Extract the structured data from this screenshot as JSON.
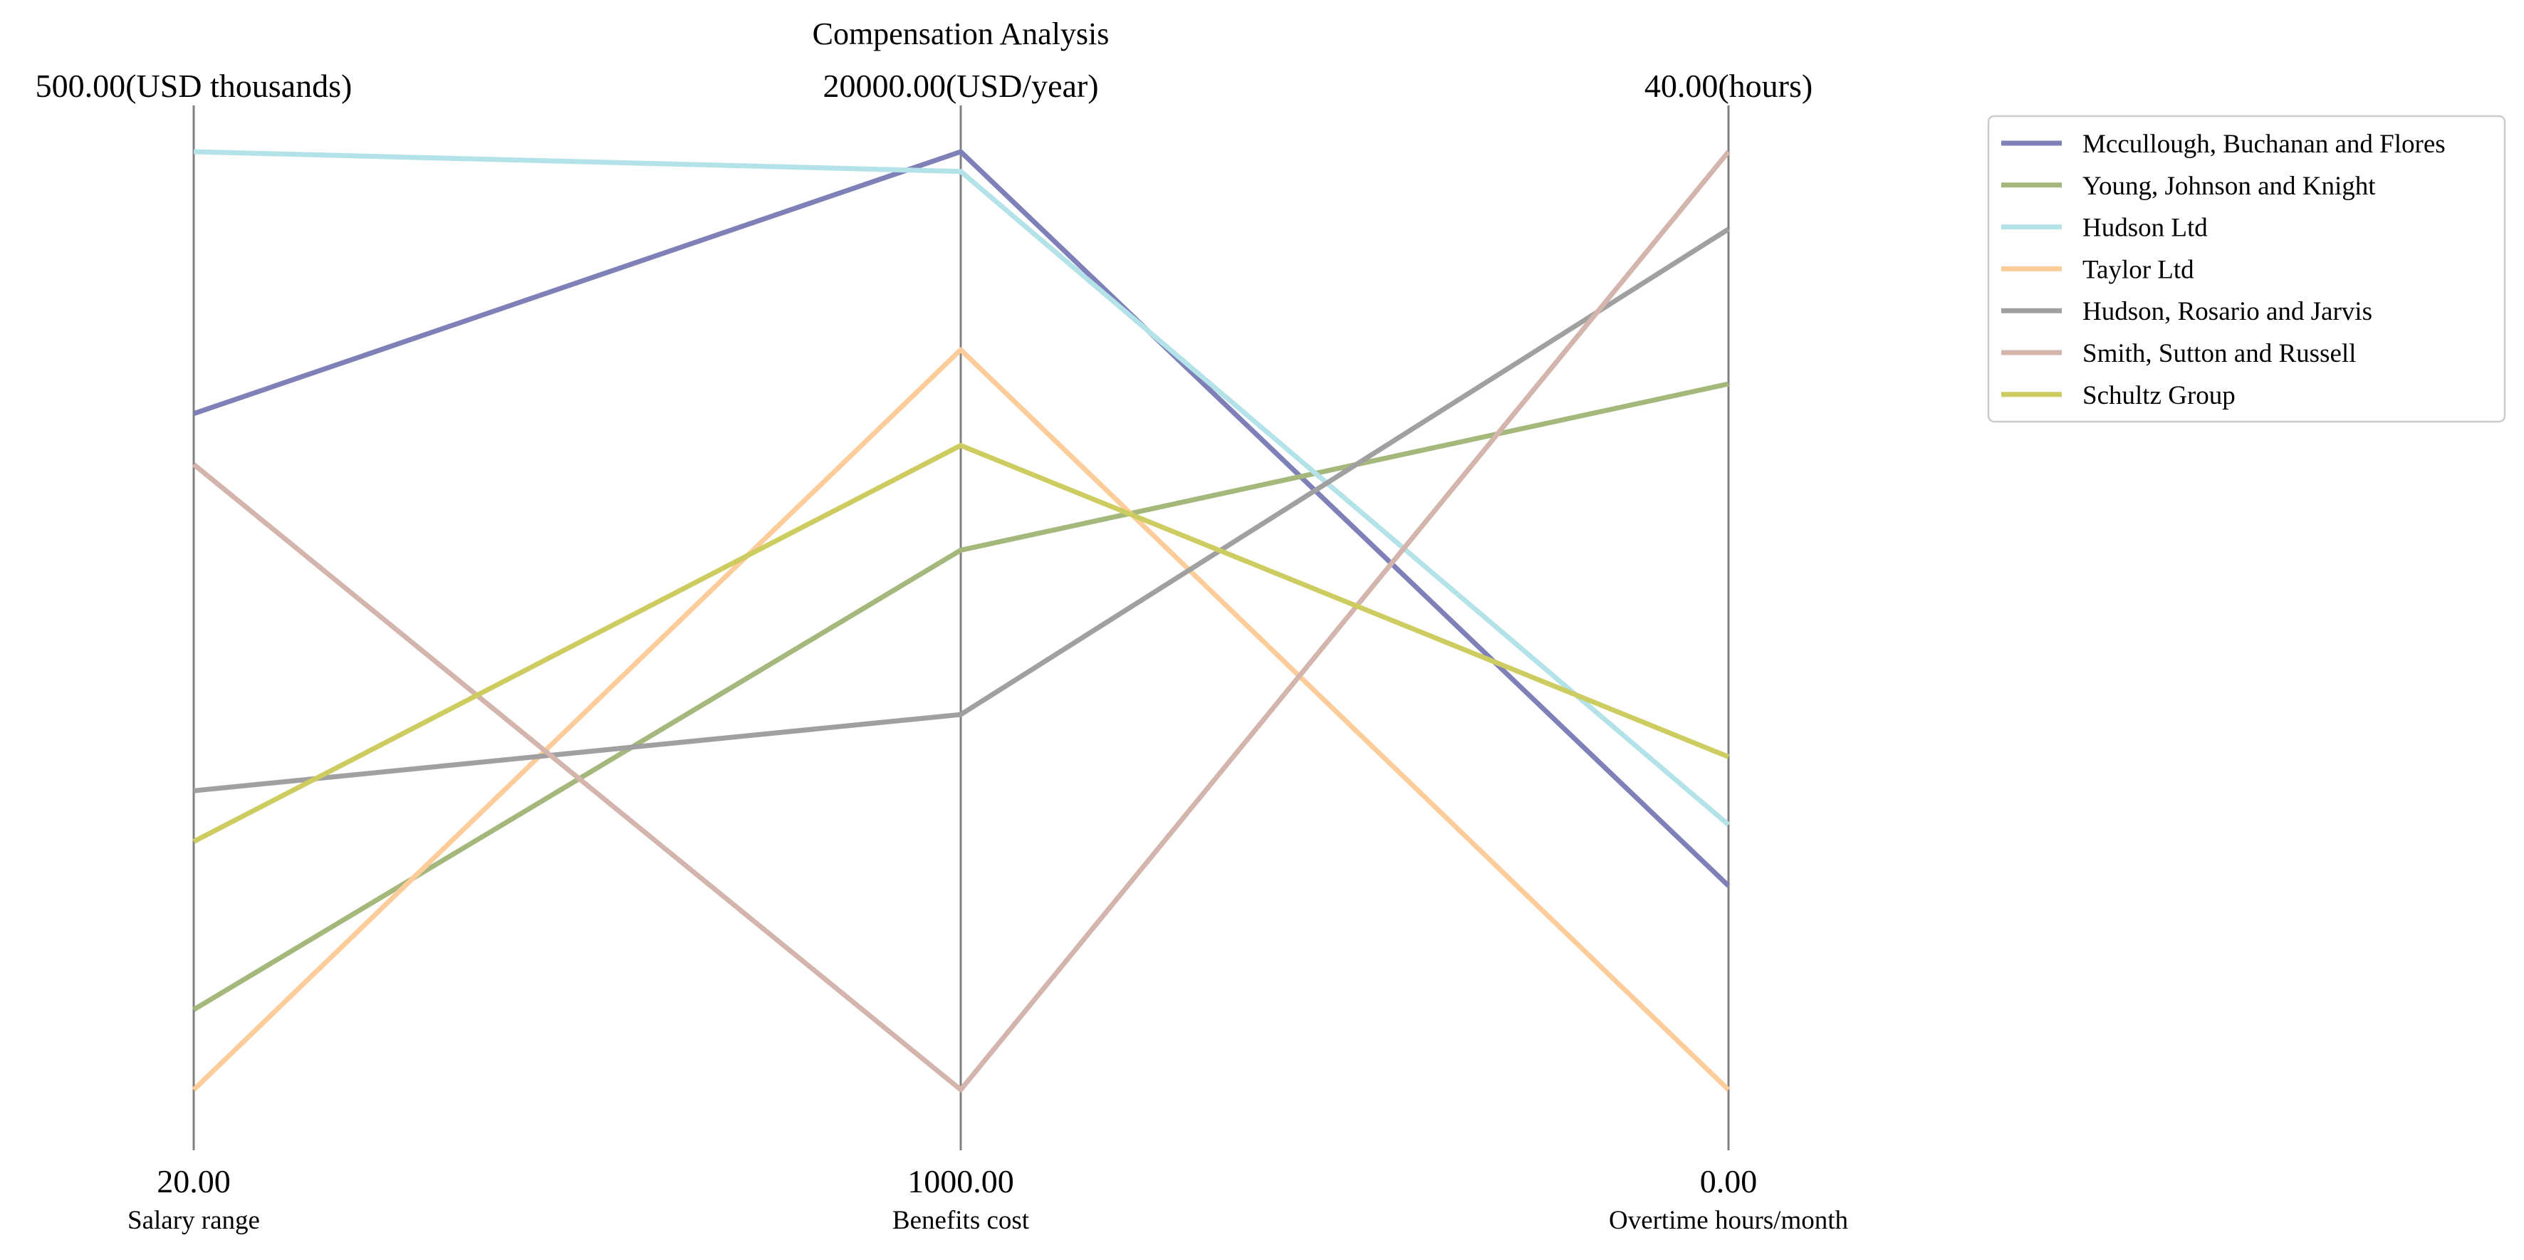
{
  "chart_data": {
    "type": "parallel_coordinates",
    "title": "Compensation Analysis",
    "axes": [
      {
        "name": "Salary range",
        "unit": "USD thousands",
        "min": 20,
        "max": 500,
        "top_label": "500.00(USD thousands)",
        "bottom_label": "20.00"
      },
      {
        "name": "Benefits cost",
        "unit": "USD/year",
        "min": 1000,
        "max": 20000,
        "top_label": "20000.00(USD/year)",
        "bottom_label": "1000.00"
      },
      {
        "name": "Overtime hours/month",
        "unit": "hours",
        "min": 0,
        "max": 40,
        "top_label": "40.00(hours)",
        "bottom_label": "0.00"
      }
    ],
    "series": [
      {
        "name": "Mccullough, Buchanan and Flores",
        "color": "#7f80b8",
        "values": [
          366,
          20000,
          8.7
        ]
      },
      {
        "name": "Young, Johnson and Knight",
        "color": "#a5b87c",
        "values": [
          61,
          11930,
          30.1
        ]
      },
      {
        "name": "Hudson Ltd",
        "color": "#b3e2e8",
        "values": [
          500,
          19600,
          11.3
        ]
      },
      {
        "name": "Taylor Ltd",
        "color": "#fccd9a",
        "values": [
          20,
          15990,
          0
        ]
      },
      {
        "name": "Hudson, Rosario and Jarvis",
        "color": "#a0a0a0",
        "values": [
          173,
          8600,
          36.7
        ]
      },
      {
        "name": "Smith, Sutton and Russell",
        "color": "#d4b5ad",
        "values": [
          340,
          1000,
          40
        ]
      },
      {
        "name": "Schultz Group",
        "color": "#cdcc60",
        "values": [
          147,
          14050,
          14.2
        ]
      }
    ],
    "legend_position": "top-right",
    "grid": false
  }
}
